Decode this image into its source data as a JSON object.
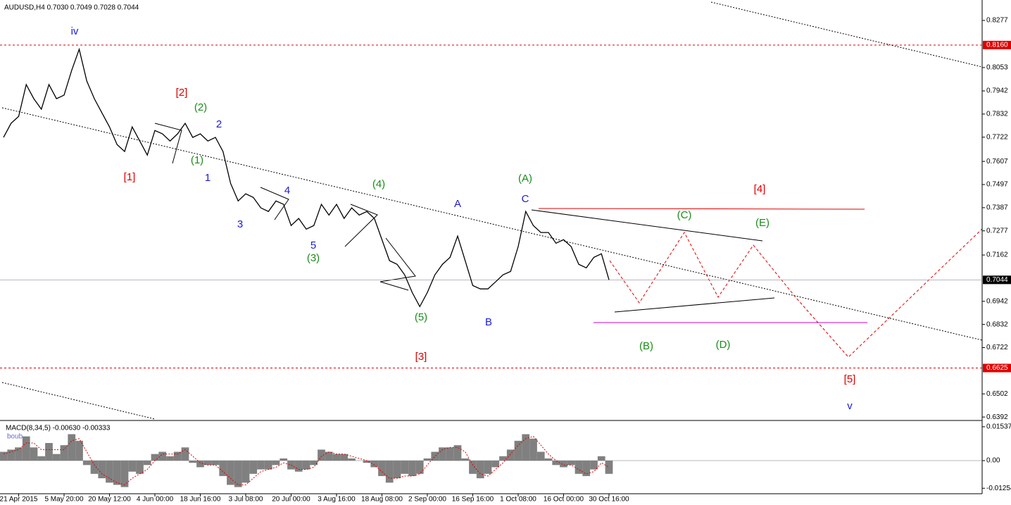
{
  "chart_data": [
    {
      "type": "line",
      "title": "AUDUSD,H4  0.7030 0.7049 0.7028 0.7044",
      "categories": [
        null,
        null,
        "21 Apr 2015",
        null,
        null,
        null,
        null,
        null,
        "5 May 20:00",
        null,
        null,
        null,
        null,
        null,
        "20 May 12:00",
        null,
        null,
        null,
        null,
        null,
        "4 Jun 00:00",
        null,
        null,
        null,
        null,
        null,
        "18 Jun 16:00",
        null,
        null,
        null,
        null,
        null,
        "3 Jul 08:00",
        null,
        null,
        null,
        null,
        null,
        "20 Jul 00:00",
        null,
        null,
        null,
        null,
        null,
        "3 Aug 16:00",
        null,
        null,
        null,
        null,
        null,
        "18 Aug 08:00",
        null,
        null,
        null,
        null,
        null,
        "2 Sep 00:00",
        null,
        null,
        null,
        null,
        null,
        "16 Sep 16:00",
        null,
        null,
        null,
        null,
        null,
        "1 Oct 08:00",
        null,
        null,
        null,
        null,
        null,
        "16 Oct 00:00",
        null,
        null,
        null,
        null,
        null,
        "30 Oct 16:00"
      ],
      "values": [
        0.7721,
        0.7788,
        0.7821,
        0.7972,
        0.7905,
        0.7855,
        0.7972,
        0.7905,
        0.7922,
        0.8039,
        0.814,
        0.7989,
        0.7905,
        0.7838,
        0.7771,
        0.7687,
        0.7654,
        0.7771,
        0.7704,
        0.7637,
        0.7754,
        0.7738,
        0.7704,
        0.7738,
        0.7788,
        0.7721,
        0.7738,
        0.7704,
        0.7721,
        0.7654,
        0.7503,
        0.7419,
        0.7453,
        0.7436,
        0.7386,
        0.7369,
        0.7419,
        0.7403,
        0.7302,
        0.7336,
        0.7285,
        0.7302,
        0.7403,
        0.7352,
        0.7403,
        0.7336,
        0.7386,
        0.7352,
        0.7369,
        0.7336,
        0.7235,
        0.7135,
        0.7118,
        0.7068,
        0.6984,
        0.6917,
        0.6984,
        0.7068,
        0.7118,
        0.7151,
        0.7252,
        0.7135,
        0.7017,
        0.7001,
        0.7001,
        0.7034,
        0.7068,
        0.7084,
        0.7202,
        0.7369,
        0.7302,
        0.7269,
        0.7269,
        0.7218,
        0.7235,
        0.7202,
        0.7118,
        0.7101,
        0.7151,
        0.7168,
        0.7044
      ],
      "color": "#000000",
      "ylim": [
        0.6379,
        0.8364
      ],
      "yticks": [
        0.8277,
        0.8053,
        0.7942,
        0.7832,
        0.7722,
        0.7607,
        0.7497,
        0.7387,
        0.7277,
        0.7162,
        0.6942,
        0.6832,
        0.6722,
        0.6502,
        0.6392
      ],
      "levels": [
        {
          "value": 0.816,
          "label": "0.8160"
        },
        0.6625
      ],
      "level_color": "#e00000",
      "last_price": 0.7044,
      "annotations": [
        {
          "text": "iv",
          "color": "#1c1cd0"
        },
        {
          "text": "[1]",
          "color": "#e00000"
        },
        {
          "text": "[2]",
          "color": "#e00000"
        },
        {
          "text": "(2)",
          "color": "#1a8c1a"
        },
        {
          "text": "2",
          "color": "#1c1cd0"
        },
        {
          "text": "(1)",
          "color": "#1a8c1a"
        },
        {
          "text": "1",
          "color": "#1c1cd0"
        },
        {
          "text": "3",
          "color": "#1c1cd0"
        },
        {
          "text": "4",
          "color": "#1c1cd0"
        },
        {
          "text": "5",
          "color": "#1c1cd0"
        },
        {
          "text": "(3)",
          "color": "#1a8c1a"
        },
        {
          "text": "(4)",
          "color": "#1a8c1a"
        },
        {
          "text": "A",
          "color": "#1c1cd0"
        },
        {
          "text": "(A)",
          "color": "#1a8c1a"
        },
        {
          "text": "C",
          "color": "#1c1cd0"
        },
        {
          "text": "(5)",
          "color": "#1a8c1a"
        },
        {
          "text": "B",
          "color": "#1c1cd0"
        },
        {
          "text": "[3]",
          "color": "#e00000"
        },
        {
          "text": "[4]",
          "color": "#e00000"
        },
        {
          "text": "(C)",
          "color": "#1a8c1a"
        },
        {
          "text": "(E)",
          "color": "#1a8c1a"
        },
        {
          "text": "(B)",
          "color": "#1a8c1a"
        },
        {
          "text": "(D)",
          "color": "#1a8c1a"
        },
        {
          "text": "[5]",
          "color": "#e00000"
        },
        {
          "text": "v",
          "color": "#1c1cd0"
        }
      ]
    },
    {
      "type": "bar",
      "title": "MACD(8,34,5) -0.00630 -0.00333",
      "subtitle": "boub",
      "values": [
        0.004,
        0.005,
        0.006,
        0.011,
        0.006,
        0.002,
        0.008,
        0.003,
        0.007,
        0.012,
        0.009,
        -0.002,
        -0.006,
        -0.008,
        -0.01,
        -0.011,
        -0.012,
        -0.005,
        -0.006,
        -0.002,
        0.003,
        0.004,
        0.002,
        0.004,
        0.006,
        -0.001,
        -0.003,
        -0.002,
        -0.002,
        -0.007,
        -0.011,
        -0.012,
        -0.01,
        -0.006,
        -0.004,
        -0.004,
        -0.002,
        0.001,
        -0.004,
        -0.005,
        -0.004,
        -0.002,
        0.005,
        0.004,
        0.003,
        0.003,
        0.001,
        0,
        -0.001,
        -0.003,
        -0.007,
        -0.01,
        -0.008,
        -0.006,
        -0.007,
        -0.006,
        0.001,
        0.004,
        0.006,
        0.006,
        0.007,
        0.001,
        -0.006,
        -0.008,
        -0.006,
        -0.003,
        0.002,
        0.005,
        0.009,
        0.012,
        0.01,
        0.004,
        0.001,
        -0.002,
        -0.003,
        -0.002,
        -0.006,
        -0.007,
        -0.004,
        0.002,
        -0.006
      ],
      "color": "#808080",
      "signal": [
        0.003,
        0.004,
        0.005,
        0.008,
        0.008,
        0.005,
        0.005,
        0.005,
        0.005,
        0.009,
        0.01,
        0.004,
        -0.002,
        -0.006,
        -0.008,
        -0.01,
        -0.011,
        -0.008,
        -0.006,
        -0.004,
        0.0,
        0.003,
        0.003,
        0.003,
        0.005,
        0.002,
        -0.001,
        -0.002,
        -0.002,
        -0.005,
        -0.008,
        -0.011,
        -0.011,
        -0.008,
        -0.005,
        -0.004,
        -0.003,
        -0.001,
        -0.002,
        -0.004,
        -0.004,
        -0.003,
        0.002,
        0.004,
        0.003,
        0.003,
        0.002,
        0.001,
        0.0,
        -0.002,
        -0.005,
        -0.008,
        -0.008,
        -0.007,
        -0.007,
        -0.006,
        -0.002,
        0.002,
        0.005,
        0.006,
        0.006,
        0.004,
        -0.002,
        -0.006,
        -0.007,
        -0.004,
        -0.001,
        0.003,
        0.007,
        0.01,
        0.011,
        0.007,
        0.003,
        0.0,
        -0.002,
        -0.002,
        -0.004,
        -0.006,
        -0.005,
        -0.001,
        -0.003
      ],
      "signal_color": "#e00000",
      "ylim": [
        -0.0147,
        0.0179
      ],
      "yticks": [
        0.01537,
        {
          "value": 0,
          "label": "0.00"
        },
        -0.01254
      ]
    }
  ]
}
